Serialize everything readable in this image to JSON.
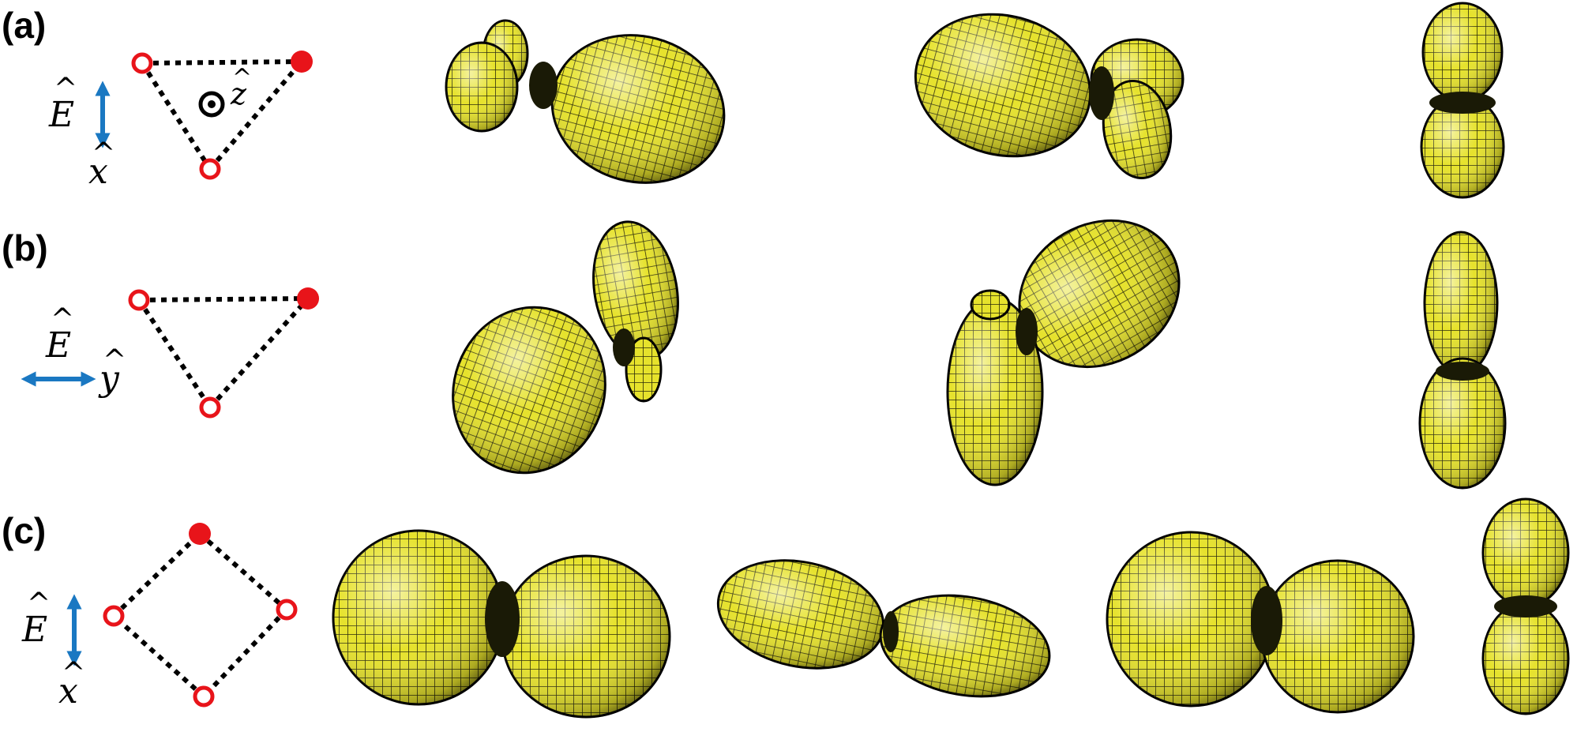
{
  "panels": [
    {
      "label": "(a)",
      "field_symbol": "E",
      "axis_symbol": "x",
      "z_axis_symbol": "z",
      "polarization": "vertical",
      "lattice": "triangle",
      "sites": [
        "open",
        "filled",
        "open"
      ]
    },
    {
      "label": "(b)",
      "field_symbol": "E",
      "axis_symbol": "y",
      "polarization": "horizontal",
      "lattice": "triangle",
      "sites": [
        "open",
        "filled",
        "open"
      ]
    },
    {
      "label": "(c)",
      "field_symbol": "E",
      "axis_symbol": "x",
      "polarization": "vertical",
      "lattice": "square",
      "sites": [
        "filled",
        "open",
        "open",
        "open"
      ]
    }
  ],
  "colors": {
    "site_red": "#e8141a",
    "arrow_blue": "#1a78c2",
    "lobe_yellow": "#e9e630",
    "mesh_dark": "#2a2a0a"
  }
}
